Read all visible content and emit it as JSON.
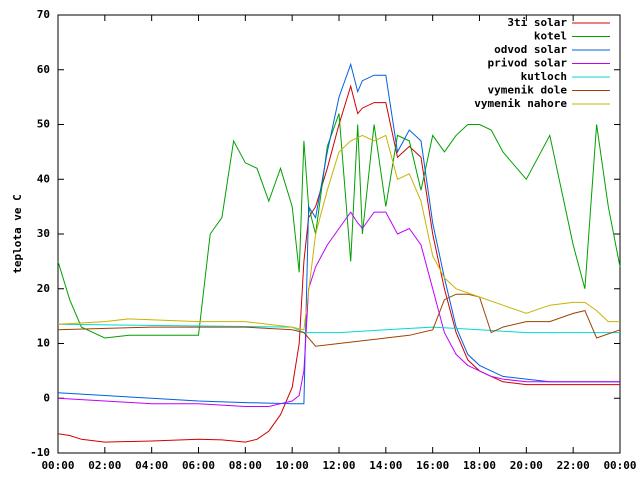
{
  "chart_data": {
    "type": "line",
    "y_label": "teplota ve C",
    "xlim": [
      0,
      24
    ],
    "ylim": [
      -10,
      70
    ],
    "xticks": [
      {
        "value": 0,
        "label": "00:00"
      },
      {
        "value": 2,
        "label": "02:00"
      },
      {
        "value": 4,
        "label": "04:00"
      },
      {
        "value": 6,
        "label": "06:00"
      },
      {
        "value": 8,
        "label": "08:00"
      },
      {
        "value": 10,
        "label": "10:00"
      },
      {
        "value": 12,
        "label": "12:00"
      },
      {
        "value": 14,
        "label": "14:00"
      },
      {
        "value": 16,
        "label": "16:00"
      },
      {
        "value": 18,
        "label": "18:00"
      },
      {
        "value": 20,
        "label": "20:00"
      },
      {
        "value": 22,
        "label": "22:00"
      },
      {
        "value": 24,
        "label": "00:00"
      }
    ],
    "yticks": [
      -10,
      0,
      10,
      20,
      30,
      40,
      50,
      60,
      70
    ],
    "legend": "top-right",
    "series": [
      {
        "name": "3ti solar",
        "color": "#d00000",
        "x": [
          0,
          0.5,
          1,
          2,
          4,
          6,
          7,
          8,
          8.5,
          9,
          9.5,
          10,
          10.3,
          10.5,
          10.7,
          11,
          11.5,
          12,
          12.5,
          12.8,
          13,
          13.5,
          14,
          14.5,
          15,
          15.5,
          16,
          16.5,
          17,
          17.5,
          18,
          18.5,
          19,
          20,
          22,
          24
        ],
        "values": [
          -6.5,
          -6.8,
          -7.5,
          -8,
          -7.8,
          -7.5,
          -7.6,
          -8,
          -7.5,
          -6,
          -3,
          2,
          10,
          25,
          33,
          35,
          42,
          50,
          57,
          52,
          53,
          54,
          54,
          44,
          46,
          44,
          30,
          20,
          12,
          7,
          5,
          4,
          3,
          2.5,
          2.5,
          2.5
        ]
      },
      {
        "name": "kotel",
        "color": "#00a000",
        "x": [
          0,
          0.5,
          1,
          1.5,
          2,
          3,
          4,
          5,
          6,
          6.5,
          7,
          7.5,
          8,
          8.5,
          9,
          9.5,
          10,
          10.3,
          10.5,
          10.7,
          11,
          11.5,
          12,
          12.5,
          12.8,
          13,
          13.5,
          14,
          14.5,
          15,
          15.5,
          16,
          16.5,
          17,
          17.5,
          18,
          18.5,
          19,
          20,
          21,
          22,
          22.5,
          23,
          23.5,
          24
        ],
        "values": [
          25,
          18,
          13,
          12,
          11,
          11.5,
          11.5,
          11.5,
          11.5,
          30,
          33,
          47,
          43,
          42,
          36,
          42,
          35,
          23,
          47,
          35,
          30,
          46,
          52,
          25,
          50,
          30,
          50,
          35,
          48,
          47,
          38,
          48,
          45,
          48,
          50,
          50,
          49,
          45,
          40,
          48,
          28,
          20,
          50,
          35,
          24
        ]
      },
      {
        "name": "odvod solar",
        "color": "#0060e0",
        "x": [
          0,
          2,
          4,
          6,
          8,
          10,
          10.5,
          10.7,
          11,
          11.5,
          12,
          12.5,
          12.8,
          13,
          13.5,
          14,
          14.5,
          15,
          15.5,
          16,
          16.5,
          17,
          17.5,
          18,
          18.5,
          19,
          20,
          21,
          22,
          23,
          24
        ],
        "values": [
          1,
          0.5,
          0,
          -0.5,
          -0.8,
          -1,
          -1,
          35,
          33,
          45,
          55,
          61,
          56,
          58,
          59,
          59,
          45,
          49,
          47,
          32,
          22,
          13,
          8,
          6,
          5,
          4,
          3.5,
          3,
          3,
          3,
          3
        ]
      },
      {
        "name": "privod solar",
        "color": "#c000ff",
        "x": [
          0,
          2,
          4,
          6,
          8,
          9,
          9.5,
          10,
          10.3,
          10.5,
          10.7,
          11,
          11.5,
          12,
          12.5,
          12.8,
          13,
          13.5,
          14,
          14.5,
          15,
          15.5,
          16,
          16.5,
          17,
          17.5,
          18,
          18.5,
          19,
          20,
          24
        ],
        "values": [
          0,
          -0.5,
          -1,
          -1,
          -1.5,
          -1.5,
          -1,
          -0.5,
          0.5,
          5,
          20,
          24,
          28,
          31,
          34,
          32,
          31,
          34,
          34,
          30,
          31,
          28,
          20,
          12,
          8,
          6,
          5,
          4,
          3.5,
          3,
          3
        ]
      },
      {
        "name": "kutloch",
        "color": "#00d8d8",
        "x": [
          0,
          10,
          10.5,
          12,
          14,
          16,
          18,
          20,
          24
        ],
        "values": [
          13.5,
          13,
          12,
          12,
          12.5,
          13,
          12.5,
          12,
          12
        ]
      },
      {
        "name": "vymenik dole",
        "color": "#a04000",
        "x": [
          0,
          4,
          6,
          8,
          10,
          10.5,
          11,
          12,
          13,
          14,
          15,
          16,
          16.5,
          17,
          17.5,
          18,
          18.5,
          19,
          20,
          21,
          22,
          22.5,
          23,
          24
        ],
        "values": [
          12.5,
          13,
          13,
          13,
          12.5,
          12,
          9.5,
          10,
          10.5,
          11,
          11.5,
          12.5,
          18,
          19,
          19,
          18.5,
          12,
          13,
          14,
          14,
          15.5,
          16,
          11,
          12.5
        ]
      },
      {
        "name": "vymenik nahore",
        "color": "#c8b400",
        "x": [
          0,
          2,
          3,
          6,
          8,
          10,
          10.5,
          11,
          11.5,
          12,
          12.5,
          13,
          13.5,
          14,
          14.5,
          15,
          15.5,
          16,
          16.5,
          17,
          18,
          19,
          20,
          21,
          22,
          22.5,
          23,
          23.5,
          24
        ],
        "values": [
          13.5,
          14,
          14.5,
          14,
          14,
          13,
          12.5,
          30,
          38,
          45,
          47,
          48,
          47,
          48,
          40,
          41,
          36,
          26,
          22,
          20,
          18.5,
          17,
          15.5,
          17,
          17.5,
          17.5,
          16,
          14,
          14
        ]
      }
    ]
  }
}
